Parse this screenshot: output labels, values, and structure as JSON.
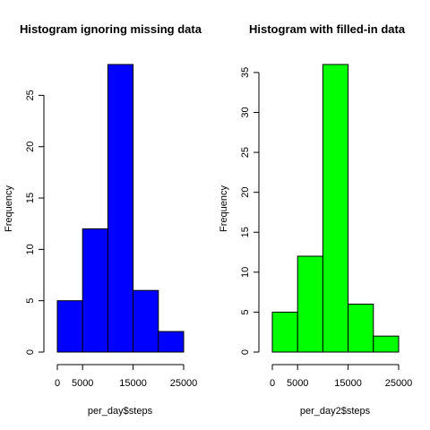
{
  "chart_data": [
    {
      "type": "bar",
      "title": "Histogram ignoring missing data",
      "xlabel": "per_day$steps",
      "ylabel": "Frequency",
      "bin_edges": [
        0,
        5000,
        10000,
        15000,
        20000,
        25000
      ],
      "values": [
        5,
        12,
        28,
        6,
        2
      ],
      "xlim": [
        0,
        25000
      ],
      "ylim": [
        0,
        28
      ],
      "xticks": [
        0,
        5000,
        15000,
        25000
      ],
      "xtick_labels": [
        "0",
        "5000",
        "15000",
        "25000"
      ],
      "yticks": [
        0,
        5,
        10,
        15,
        20,
        25
      ],
      "ytick_labels": [
        "0",
        "5",
        "10",
        "15",
        "20",
        "25"
      ],
      "color": "#0000ff",
      "grid": false
    },
    {
      "type": "bar",
      "title": "Histogram with filled-in data",
      "xlabel": "per_day2$steps",
      "ylabel": "Frequency",
      "bin_edges": [
        0,
        5000,
        10000,
        15000,
        20000,
        25000
      ],
      "values": [
        5,
        12,
        36,
        6,
        2
      ],
      "xlim": [
        0,
        25000
      ],
      "ylim": [
        0,
        36
      ],
      "xticks": [
        0,
        5000,
        15000,
        25000
      ],
      "xtick_labels": [
        "0",
        "5000",
        "15000",
        "25000"
      ],
      "yticks": [
        0,
        5,
        10,
        15,
        20,
        25,
        30,
        35
      ],
      "ytick_labels": [
        "0",
        "5",
        "10",
        "15",
        "20",
        "25",
        "30",
        "35"
      ],
      "color": "#00ff00",
      "grid": false
    }
  ]
}
